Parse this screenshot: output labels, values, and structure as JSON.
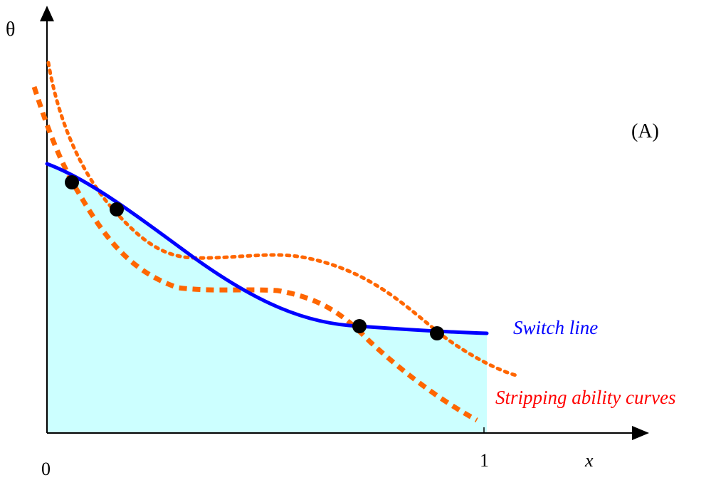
{
  "diagram": {
    "axes": {
      "y_label": "θ",
      "x_label": "x",
      "origin_label": "0",
      "x_max_label": "1"
    },
    "panel_label": "(A)",
    "switch_line": {
      "label": "Switch line",
      "color": "#0000ff"
    },
    "stripping_curves": {
      "label": "Stripping ability curves",
      "color": "#ff6600",
      "label_color": "#ff0000"
    },
    "feasible_region": {
      "fill": "#ccffff"
    },
    "intersection_points": {
      "color": "#000000",
      "count": 4
    }
  }
}
